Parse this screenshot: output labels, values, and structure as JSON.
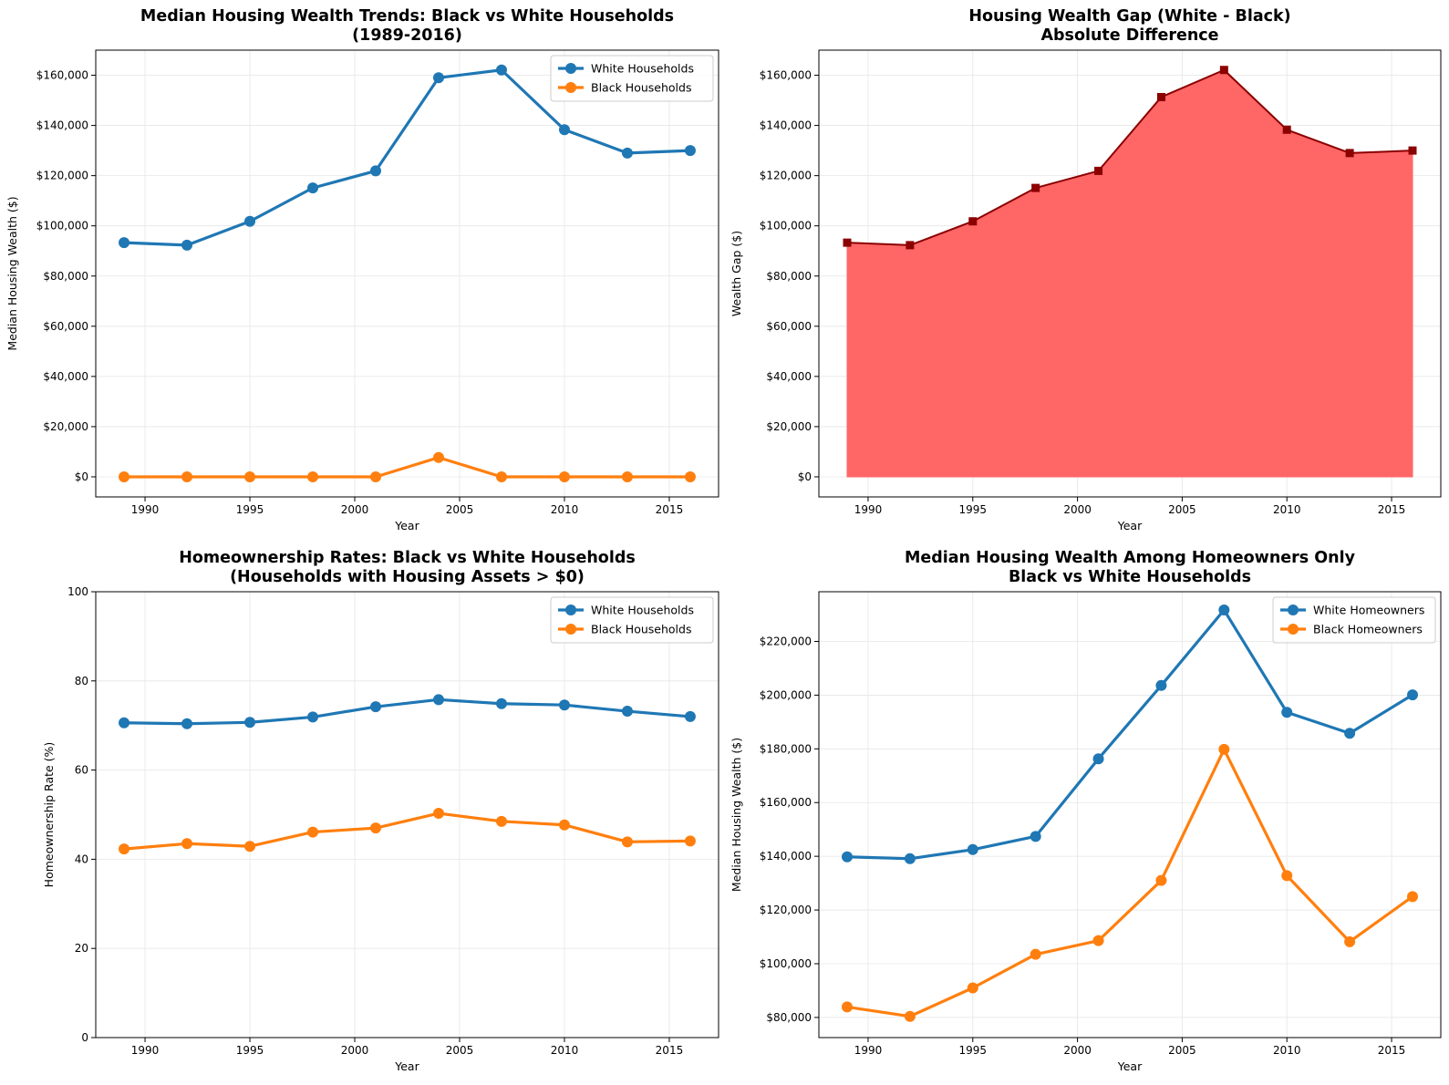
{
  "chart_data": [
    {
      "id": "p1",
      "type": "line",
      "title": "Median Housing Wealth Trends: Black vs White Households\n(1989-2016)",
      "xlabel": "Year",
      "ylabel": "Median Housing Wealth ($)",
      "x": [
        1989,
        1992,
        1995,
        1998,
        2001,
        2004,
        2007,
        2010,
        2013,
        2016
      ],
      "xlim": [
        1987.65,
        2017.35
      ],
      "ylim": [
        -8000,
        170000
      ],
      "xticks": [
        1990,
        1995,
        2000,
        2005,
        2010,
        2015
      ],
      "xtick_labels": [
        "1990",
        "1995",
        "2000",
        "2005",
        "2010",
        "2015"
      ],
      "yticks": [
        0,
        20000,
        40000,
        60000,
        80000,
        100000,
        120000,
        140000,
        160000
      ],
      "ytick_labels": [
        "$0",
        "$20,000",
        "$40,000",
        "$60,000",
        "$80,000",
        "$100,000",
        "$120,000",
        "$140,000",
        "$160,000"
      ],
      "grid": true,
      "legend": "top-right",
      "series": [
        {
          "name": "White Households",
          "color": "#1f77b4",
          "marker": "circle",
          "values": [
            93300,
            92300,
            101800,
            115100,
            121900,
            159000,
            162100,
            138300,
            129000,
            130000
          ]
        },
        {
          "name": "Black Households",
          "color": "#ff7f0e",
          "marker": "circle",
          "values": [
            0,
            0,
            0,
            0,
            0,
            7700,
            0,
            0,
            0,
            0
          ]
        }
      ]
    },
    {
      "id": "p2",
      "type": "area",
      "title": "Housing Wealth Gap (White - Black)\nAbsolute Difference",
      "xlabel": "Year",
      "ylabel": "Wealth Gap ($)",
      "x": [
        1989,
        1992,
        1995,
        1998,
        2001,
        2004,
        2007,
        2010,
        2013,
        2016
      ],
      "xlim": [
        1987.65,
        2017.35
      ],
      "ylim": [
        -8000,
        170000
      ],
      "xticks": [
        1990,
        1995,
        2000,
        2005,
        2010,
        2015
      ],
      "xtick_labels": [
        "1990",
        "1995",
        "2000",
        "2005",
        "2010",
        "2015"
      ],
      "yticks": [
        0,
        20000,
        40000,
        60000,
        80000,
        100000,
        120000,
        140000,
        160000
      ],
      "ytick_labels": [
        "$0",
        "$20,000",
        "$40,000",
        "$60,000",
        "$80,000",
        "$100,000",
        "$120,000",
        "$140,000",
        "$160,000"
      ],
      "grid": true,
      "legend": "none",
      "series": [
        {
          "name": "",
          "color": "#8b0000",
          "fill": "#ff6666",
          "marker": "square",
          "values": [
            93300,
            92300,
            101800,
            115100,
            121900,
            151300,
            162100,
            138300,
            129000,
            130000
          ]
        }
      ]
    },
    {
      "id": "p3",
      "type": "line",
      "title": "Homeownership Rates: Black vs White Households\n(Households with Housing Assets > $0)",
      "xlabel": "Year",
      "ylabel": "Homeownership Rate (%)",
      "x": [
        1989,
        1992,
        1995,
        1998,
        2001,
        2004,
        2007,
        2010,
        2013,
        2016
      ],
      "xlim": [
        1987.65,
        2017.35
      ],
      "ylim": [
        0,
        100
      ],
      "xticks": [
        1990,
        1995,
        2000,
        2005,
        2010,
        2015
      ],
      "xtick_labels": [
        "1990",
        "1995",
        "2000",
        "2005",
        "2010",
        "2015"
      ],
      "yticks": [
        0,
        20,
        40,
        60,
        80,
        100
      ],
      "ytick_labels": [
        "0",
        "20",
        "40",
        "60",
        "80",
        "100"
      ],
      "grid": true,
      "legend": "top-right",
      "series": [
        {
          "name": "White Households",
          "color": "#1f77b4",
          "marker": "circle",
          "values": [
            70.6,
            70.4,
            70.7,
            71.9,
            74.2,
            75.8,
            74.9,
            74.6,
            73.2,
            72.0
          ]
        },
        {
          "name": "Black Households",
          "color": "#ff7f0e",
          "marker": "circle",
          "values": [
            42.3,
            43.5,
            42.9,
            46.1,
            47.0,
            50.3,
            48.5,
            47.7,
            43.9,
            44.1
          ]
        }
      ]
    },
    {
      "id": "p4",
      "type": "line",
      "title": "Median Housing Wealth Among Homeowners Only\nBlack vs White Households",
      "xlabel": "Year",
      "ylabel": "Median Housing Wealth ($)",
      "x": [
        1989,
        1992,
        1995,
        1998,
        2001,
        2004,
        2007,
        2010,
        2013,
        2016
      ],
      "xlim": [
        1987.65,
        2017.35
      ],
      "ylim": [
        72500,
        238500
      ],
      "xticks": [
        1990,
        1995,
        2000,
        2005,
        2010,
        2015
      ],
      "xtick_labels": [
        "1990",
        "1995",
        "2000",
        "2005",
        "2010",
        "2015"
      ],
      "yticks": [
        80000,
        100000,
        120000,
        140000,
        160000,
        180000,
        200000,
        220000
      ],
      "ytick_labels": [
        "$80,000",
        "$100,000",
        "$120,000",
        "$140,000",
        "$160,000",
        "$180,000",
        "$200,000",
        "$220,000"
      ],
      "grid": true,
      "legend": "top-right",
      "series": [
        {
          "name": "White Homeowners",
          "color": "#1f77b4",
          "marker": "circle",
          "values": [
            139800,
            139100,
            142500,
            147400,
            176300,
            203600,
            231700,
            193600,
            185800,
            200100
          ]
        },
        {
          "name": "Black Homeowners",
          "color": "#ff7f0e",
          "marker": "circle",
          "values": [
            83900,
            80400,
            91000,
            103500,
            108600,
            131000,
            179800,
            132800,
            108200,
            125000
          ]
        }
      ]
    }
  ]
}
